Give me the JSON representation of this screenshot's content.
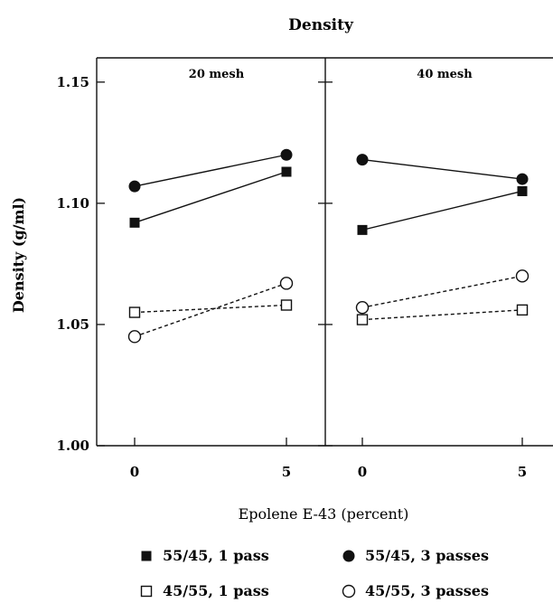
{
  "chart_data": {
    "type": "line",
    "title": "Density",
    "xlabel": "Epolene E-43 (percent)",
    "ylabel": "Density (g/ml)",
    "ylim": [
      1.0,
      1.16
    ],
    "yticks": [
      "1.00",
      "1.05",
      "1.10",
      "1.15"
    ],
    "ytick_values": [
      1.0,
      1.05,
      1.1,
      1.15
    ],
    "x": [
      0,
      5
    ],
    "xtick_labels": [
      "0",
      "5"
    ],
    "grid": false,
    "legend_position": "bottom",
    "panels": [
      {
        "title": "20 mesh",
        "series": [
          {
            "name": "55/45, 1 pass",
            "marker": "filled-square",
            "line": "solid",
            "values": [
              1.092,
              1.113
            ]
          },
          {
            "name": "55/45, 3 passes",
            "marker": "filled-circle",
            "line": "solid",
            "values": [
              1.107,
              1.12
            ]
          },
          {
            "name": "45/55, 1 pass",
            "marker": "open-square",
            "line": "dashed",
            "values": [
              1.055,
              1.058
            ]
          },
          {
            "name": "45/55, 3 passes",
            "marker": "open-circle",
            "line": "dashed",
            "values": [
              1.045,
              1.067
            ]
          }
        ]
      },
      {
        "title": "40 mesh",
        "series": [
          {
            "name": "55/45, 1 pass",
            "marker": "filled-square",
            "line": "solid",
            "values": [
              1.089,
              1.105
            ]
          },
          {
            "name": "55/45, 3 passes",
            "marker": "filled-circle",
            "line": "solid",
            "values": [
              1.118,
              1.11
            ]
          },
          {
            "name": "45/55, 1 pass",
            "marker": "open-square",
            "line": "dashed",
            "values": [
              1.052,
              1.056
            ]
          },
          {
            "name": "45/55, 3 passes",
            "marker": "open-circle",
            "line": "dashed",
            "values": [
              1.057,
              1.07
            ]
          }
        ]
      }
    ],
    "legend": [
      {
        "label": "55/45, 1 pass",
        "marker": "filled-square"
      },
      {
        "label": "55/45, 3 passes",
        "marker": "filled-circle"
      },
      {
        "label": "45/55, 1 pass",
        "marker": "open-square"
      },
      {
        "label": "45/55, 3 passes",
        "marker": "open-circle"
      }
    ]
  }
}
